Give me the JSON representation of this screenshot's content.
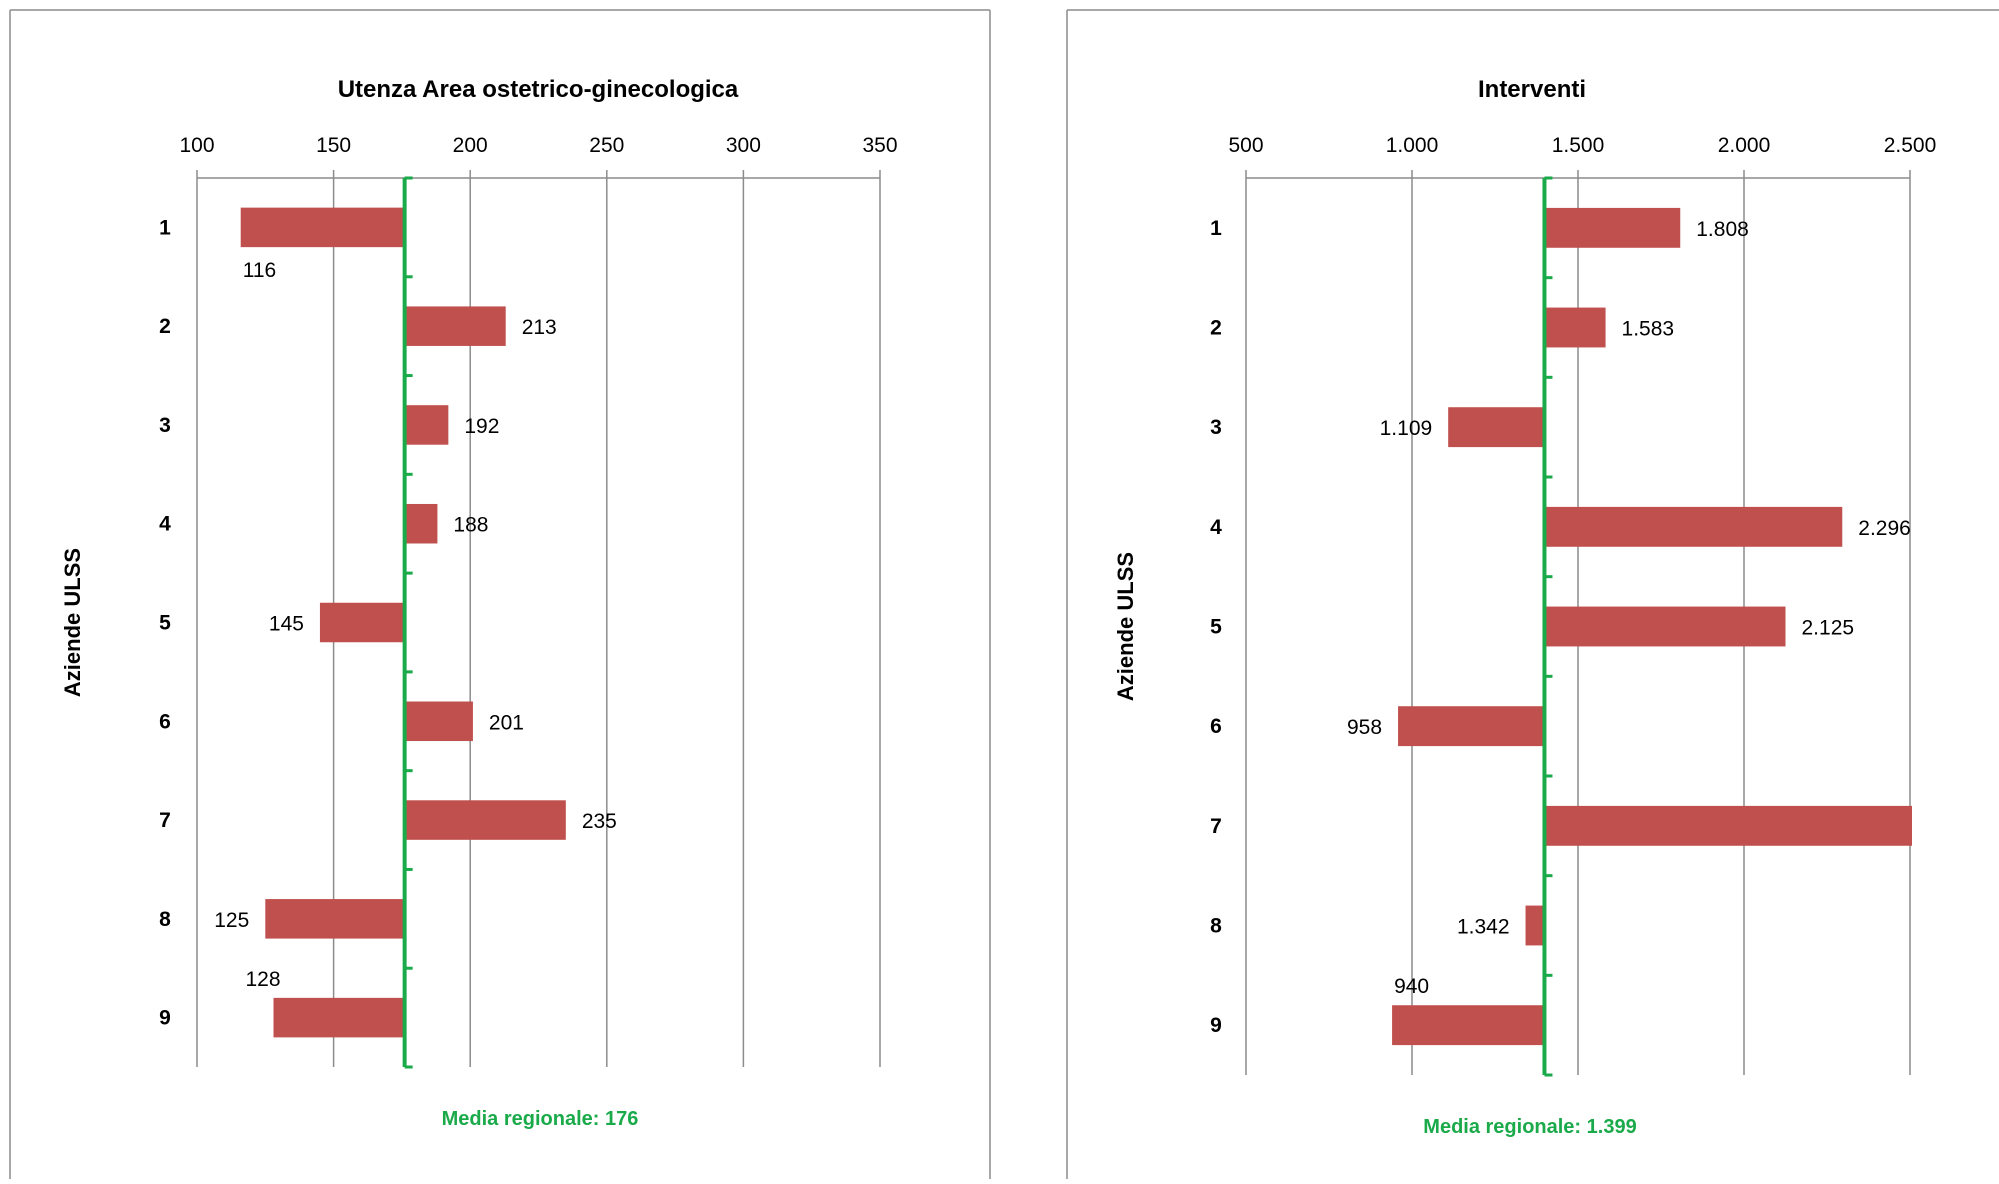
{
  "chart_data": [
    {
      "type": "bar",
      "orientation": "horizontal",
      "title": "Utenza Area ostetrico-ginecologica",
      "ylabel": "Aziende ULSS",
      "xlabel": "",
      "categories": [
        "1",
        "2",
        "3",
        "4",
        "5",
        "6",
        "7",
        "8",
        "9"
      ],
      "values": [
        116,
        213,
        192,
        188,
        145,
        201,
        235,
        125,
        128
      ],
      "value_labels": [
        "116",
        "213",
        "192",
        "188",
        "145",
        "201",
        "235",
        "125",
        "128"
      ],
      "baseline": 176,
      "xlim": [
        100,
        350
      ],
      "xticks": [
        100,
        150,
        200,
        250,
        300,
        350
      ],
      "xtick_labels": [
        "100",
        "150",
        "200",
        "250",
        "300",
        "350"
      ],
      "x_axis_position": "top",
      "grid": true,
      "mean_label": "Media regionale: 176",
      "bar_color": "#c0504d",
      "mean_color": "#1aaa4a"
    },
    {
      "type": "bar",
      "orientation": "horizontal",
      "title": "Interventi",
      "ylabel": "Aziende ULSS",
      "xlabel": "",
      "categories": [
        "1",
        "2",
        "3",
        "4",
        "5",
        "6",
        "7",
        "8",
        "9"
      ],
      "values": [
        1808,
        1583,
        1109,
        2296,
        2125,
        958,
        2510,
        1342,
        940
      ],
      "value_labels": [
        "1.808",
        "1.583",
        "1.109",
        "2.296",
        "2.125",
        "958",
        "",
        "1.342",
        "940"
      ],
      "baseline": 1399,
      "xlim": [
        500,
        2500
      ],
      "xticks": [
        500,
        1000,
        1500,
        2000,
        2500
      ],
      "xtick_labels": [
        "500",
        "1.000",
        "1.500",
        "2.000",
        "2.500"
      ],
      "x_axis_position": "top",
      "grid": true,
      "mean_label": "Media regionale: 1.399",
      "bar_color": "#c0504d",
      "mean_color": "#1aaa4a"
    }
  ]
}
